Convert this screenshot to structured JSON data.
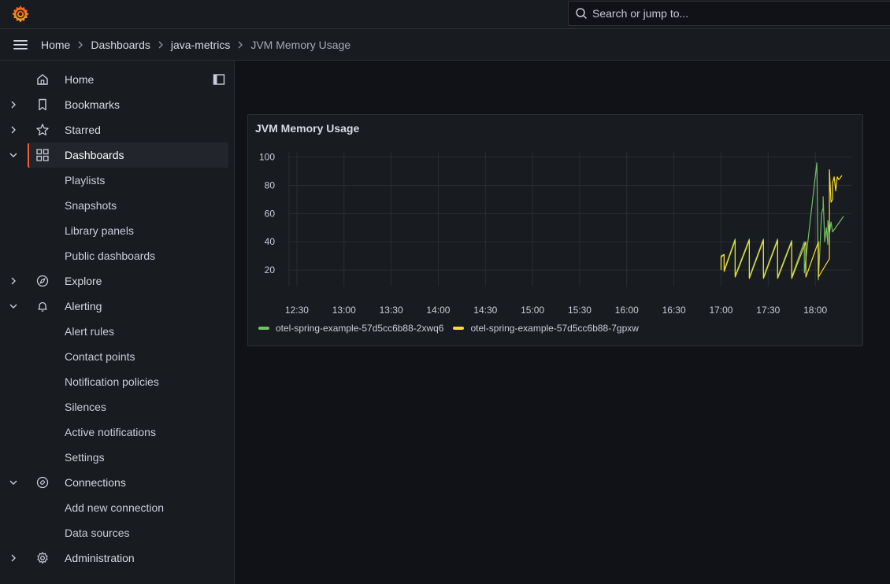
{
  "search": {
    "placeholder": "Search or jump to..."
  },
  "breadcrumb": [
    {
      "label": "Home"
    },
    {
      "label": "Dashboards"
    },
    {
      "label": "java-metrics"
    },
    {
      "label": "JVM Memory Usage"
    }
  ],
  "nav": {
    "home": "Home",
    "bookmarks": "Bookmarks",
    "starred": "Starred",
    "dashboards": "Dashboards",
    "playlists": "Playlists",
    "snapshots": "Snapshots",
    "library_panels": "Library panels",
    "public_dashboards": "Public dashboards",
    "explore": "Explore",
    "alerting": "Alerting",
    "alert_rules": "Alert rules",
    "contact_points": "Contact points",
    "notification_policies": "Notification policies",
    "silences": "Silences",
    "active_notifications": "Active notifications",
    "settings": "Settings",
    "connections": "Connections",
    "add_new_connection": "Add new connection",
    "data_sources": "Data sources",
    "administration": "Administration"
  },
  "colors": {
    "accent": "#f55f3e",
    "series_green": "#73bf69",
    "series_yellow": "#fade2a"
  },
  "panel": {
    "title": "JVM Memory Usage"
  },
  "chart_data": {
    "type": "line",
    "title": "JVM Memory Usage",
    "x_ticks": [
      "12:30",
      "13:00",
      "13:30",
      "14:00",
      "14:30",
      "15:00",
      "15:30",
      "16:00",
      "16:30",
      "17:00",
      "17:30",
      "18:00"
    ],
    "y_ticks": [
      20,
      40,
      60,
      80,
      100
    ],
    "ylim": [
      10,
      102
    ],
    "xlim": [
      "12:20",
      "18:23"
    ],
    "grid": true,
    "legend_position": "bottom-left",
    "series": [
      {
        "name": "otel-spring-example-57d5cc6b88-2xwq6",
        "color": "#73bf69",
        "points": [
          [
            "17:00",
            22
          ],
          [
            "17:00",
            30
          ],
          [
            "17:02",
            31
          ],
          [
            "17:02",
            20
          ],
          [
            "17:09",
            42
          ],
          [
            "17:09",
            16
          ],
          [
            "17:18",
            42
          ],
          [
            "17:18",
            15
          ],
          [
            "17:27",
            42
          ],
          [
            "17:27",
            15
          ],
          [
            "17:36",
            42
          ],
          [
            "17:36",
            15
          ],
          [
            "17:45",
            41
          ],
          [
            "17:45",
            15
          ],
          [
            "17:53",
            40
          ],
          [
            "17:53",
            18
          ],
          [
            "18:01",
            96
          ],
          [
            "18:02",
            13
          ],
          [
            "18:04",
            60
          ],
          [
            "18:05",
            64
          ],
          [
            "18:05",
            72
          ],
          [
            "18:06",
            40
          ],
          [
            "18:07",
            50
          ],
          [
            "18:08",
            38
          ],
          [
            "18:08",
            55
          ],
          [
            "18:09",
            46
          ],
          [
            "18:10",
            54
          ],
          [
            "18:11",
            47
          ],
          [
            "18:18",
            58
          ]
        ]
      },
      {
        "name": "otel-spring-example-57d5cc6b88-7gpxw",
        "color": "#fade2a",
        "points": [
          [
            "17:00",
            20
          ],
          [
            "17:00",
            29
          ],
          [
            "17:02",
            31
          ],
          [
            "17:02",
            19
          ],
          [
            "17:09",
            41
          ],
          [
            "17:09",
            15
          ],
          [
            "17:18",
            41
          ],
          [
            "17:18",
            14
          ],
          [
            "17:27",
            41
          ],
          [
            "17:27",
            14
          ],
          [
            "17:36",
            41
          ],
          [
            "17:36",
            14
          ],
          [
            "17:45",
            40
          ],
          [
            "17:45",
            14
          ],
          [
            "17:54",
            40
          ],
          [
            "17:54",
            15
          ],
          [
            "18:02",
            40
          ],
          [
            "18:02",
            15
          ],
          [
            "18:09",
            28
          ],
          [
            "18:09",
            91
          ],
          [
            "18:10",
            68
          ],
          [
            "18:11",
            70
          ],
          [
            "18:11",
            82
          ],
          [
            "18:12",
            86
          ],
          [
            "18:13",
            76
          ],
          [
            "18:14",
            86
          ],
          [
            "18:15",
            84
          ],
          [
            "18:17",
            87
          ]
        ]
      }
    ]
  }
}
